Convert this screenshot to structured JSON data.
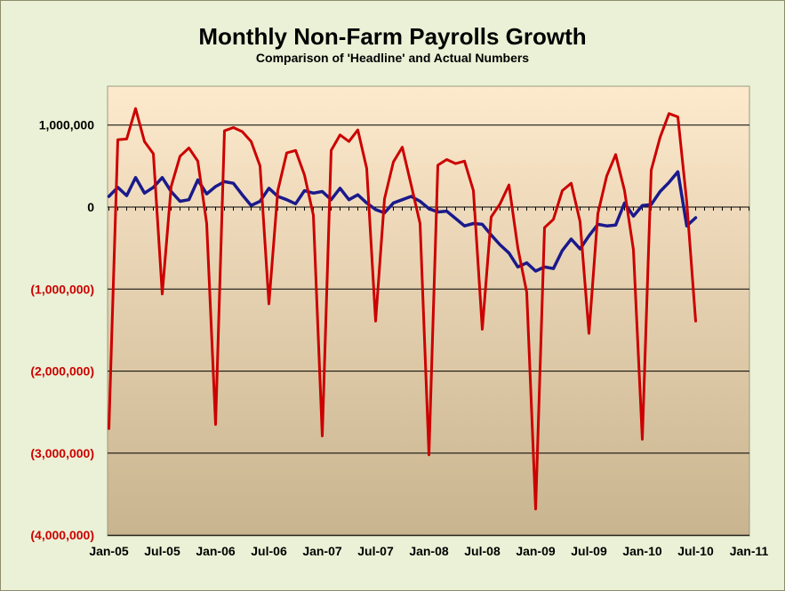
{
  "chart_data": {
    "type": "line",
    "title": "Monthly Non-Farm Payrolls Growth",
    "subtitle": "Comparison of 'Headline' and Actual Numbers",
    "ylim": [
      -4000000,
      1000000
    ],
    "yticks": [
      {
        "value": 1000000,
        "label": "1,000,000",
        "color": "#000000"
      },
      {
        "value": 0,
        "label": "0",
        "color": "#000000"
      },
      {
        "value": -1000000,
        "label": "(1,000,000)",
        "color": "#cc0000"
      },
      {
        "value": -2000000,
        "label": "(2,000,000)",
        "color": "#cc0000"
      },
      {
        "value": -3000000,
        "label": "(3,000,000)",
        "color": "#cc0000"
      },
      {
        "value": -4000000,
        "label": "(4,000,000)",
        "color": "#cc0000"
      }
    ],
    "xticks": [
      {
        "index": 0,
        "label": "Jan-05"
      },
      {
        "index": 6,
        "label": "Jul-05"
      },
      {
        "index": 12,
        "label": "Jan-06"
      },
      {
        "index": 18,
        "label": "Jul-06"
      },
      {
        "index": 24,
        "label": "Jan-07"
      },
      {
        "index": 30,
        "label": "Jul-07"
      },
      {
        "index": 36,
        "label": "Jan-08"
      },
      {
        "index": 42,
        "label": "Jul-08"
      },
      {
        "index": 48,
        "label": "Jan-09"
      },
      {
        "index": 54,
        "label": "Jul-09"
      },
      {
        "index": 60,
        "label": "Jan-10"
      },
      {
        "index": 66,
        "label": "Jul-10"
      },
      {
        "index": 72,
        "label": "Jan-11"
      }
    ],
    "x_count": 73,
    "grid": true,
    "colors": {
      "frame_bg": "#ebf1d6",
      "plot_top": "#fde9cc",
      "plot_bottom": "#c8b48e",
      "gridline": "#000000"
    },
    "series": [
      {
        "color": "#1a1a8c",
        "values": [
          130000,
          240000,
          140000,
          360000,
          170000,
          240000,
          360000,
          190000,
          70000,
          90000,
          330000,
          160000,
          250000,
          310000,
          290000,
          150000,
          20000,
          70000,
          230000,
          130000,
          90000,
          40000,
          200000,
          170000,
          190000,
          90000,
          230000,
          90000,
          150000,
          50000,
          -30000,
          -70000,
          50000,
          90000,
          130000,
          70000,
          -20000,
          -60000,
          -50000,
          -140000,
          -230000,
          -200000,
          -210000,
          -340000,
          -460000,
          -560000,
          -730000,
          -680000,
          -780000,
          -730000,
          -750000,
          -530000,
          -390000,
          -510000,
          -350000,
          -210000,
          -230000,
          -220000,
          50000,
          -110000,
          20000,
          30000,
          190000,
          300000,
          430000,
          -230000,
          -130000
        ]
      },
      {
        "color": "#cc0000",
        "values": [
          -2700000,
          820000,
          830000,
          1200000,
          800000,
          650000,
          -1060000,
          250000,
          620000,
          720000,
          560000,
          -200000,
          -2650000,
          930000,
          970000,
          920000,
          800000,
          500000,
          -1180000,
          200000,
          660000,
          690000,
          390000,
          -100000,
          -2790000,
          690000,
          880000,
          800000,
          940000,
          470000,
          -1390000,
          100000,
          550000,
          730000,
          270000,
          -200000,
          -3020000,
          510000,
          580000,
          530000,
          560000,
          200000,
          -1490000,
          -120000,
          40000,
          270000,
          -500000,
          -1040000,
          -3680000,
          -250000,
          -150000,
          200000,
          290000,
          -180000,
          -1540000,
          -80000,
          380000,
          640000,
          200000,
          -520000,
          -2830000,
          450000,
          850000,
          1140000,
          1100000,
          60000,
          -1390000
        ]
      }
    ]
  }
}
